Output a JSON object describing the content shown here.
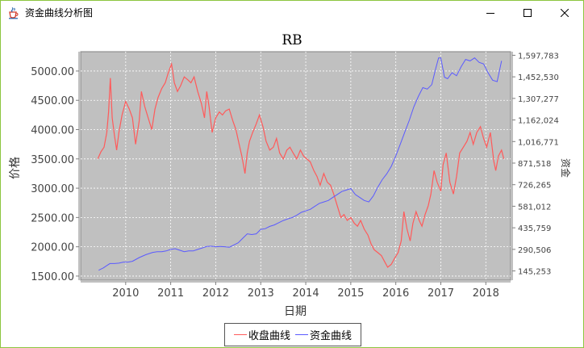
{
  "window": {
    "title": "资金曲线分析图",
    "icon": "java-cup-icon",
    "controls": [
      "minimize-icon",
      "maximize-icon",
      "close-icon"
    ]
  },
  "colors": {
    "plot_bg": "#c0c0c0",
    "price_line": "#ff5a5a",
    "equity_line": "#5a5aff",
    "grid": "#ffffff"
  },
  "chart_data": {
    "type": "line",
    "title": "RB",
    "xlabel": "日期",
    "ylabel": "价格",
    "y2label": "资金",
    "x_ticks": [
      "2010",
      "2011",
      "2012",
      "2013",
      "2014",
      "2015",
      "2016",
      "2017",
      "2018"
    ],
    "y_ticks": [
      "1500.00",
      "2000.00",
      "2500.00",
      "3000.00",
      "3500.00",
      "4000.00",
      "4500.00",
      "5000.00"
    ],
    "y2_ticks": [
      "145,253",
      "290,506",
      "435,759",
      "581,012",
      "726,265",
      "871,518",
      "1,016,771",
      "1,162,024",
      "1,307,277",
      "1,452,530",
      "1,597,783"
    ],
    "xlim": [
      2009.0,
      2018.55
    ],
    "ylim": [
      1430,
      5330
    ],
    "y2lim": [
      83000,
      1622000
    ],
    "grid": true,
    "legend_position": "bottom",
    "series": [
      {
        "name": "收盘曲线",
        "axis": "left",
        "x": [
          2009.38,
          2009.45,
          2009.52,
          2009.58,
          2009.62,
          2009.66,
          2009.7,
          2009.75,
          2009.8,
          2009.85,
          2009.92,
          2010.0,
          2010.08,
          2010.15,
          2010.22,
          2010.3,
          2010.35,
          2010.42,
          2010.5,
          2010.58,
          2010.65,
          2010.72,
          2010.8,
          2010.88,
          2010.95,
          2011.02,
          2011.08,
          2011.15,
          2011.22,
          2011.3,
          2011.38,
          2011.45,
          2011.52,
          2011.6,
          2011.68,
          2011.75,
          2011.8,
          2011.85,
          2011.92,
          2012.0,
          2012.08,
          2012.15,
          2012.22,
          2012.3,
          2012.38,
          2012.45,
          2012.52,
          2012.58,
          2012.65,
          2012.7,
          2012.75,
          2012.82,
          2012.9,
          2012.97,
          2013.05,
          2013.12,
          2013.2,
          2013.28,
          2013.35,
          2013.42,
          2013.5,
          2013.58,
          2013.65,
          2013.72,
          2013.8,
          2013.88,
          2013.95,
          2014.02,
          2014.1,
          2014.18,
          2014.25,
          2014.32,
          2014.4,
          2014.48,
          2014.55,
          2014.62,
          2014.7,
          2014.78,
          2014.85,
          2014.92,
          2015.0,
          2015.08,
          2015.15,
          2015.22,
          2015.3,
          2015.38,
          2015.45,
          2015.52,
          2015.6,
          2015.68,
          2015.75,
          2015.82,
          2015.9,
          2015.97,
          2016.05,
          2016.12,
          2016.18,
          2016.25,
          2016.32,
          2016.38,
          2016.45,
          2016.52,
          2016.58,
          2016.65,
          2016.72,
          2016.78,
          2016.85,
          2016.92,
          2017.0,
          2017.05,
          2017.12,
          2017.2,
          2017.28,
          2017.35,
          2017.42,
          2017.5,
          2017.58,
          2017.65,
          2017.72,
          2017.8,
          2017.88,
          2017.95,
          2018.02,
          2018.1,
          2018.18,
          2018.22,
          2018.28,
          2018.35,
          2018.4
        ],
        "values": [
          3500,
          3620,
          3700,
          3950,
          4300,
          4880,
          4200,
          3900,
          3650,
          3950,
          4250,
          4480,
          4350,
          4200,
          3750,
          4150,
          4650,
          4400,
          4200,
          4000,
          4350,
          4550,
          4700,
          4800,
          4980,
          5120,
          4800,
          4650,
          4750,
          4900,
          4850,
          4800,
          4900,
          4650,
          4450,
          4200,
          4650,
          4400,
          3950,
          4200,
          4300,
          4250,
          4320,
          4350,
          4150,
          4000,
          3750,
          3550,
          3250,
          3600,
          3800,
          3950,
          4100,
          4250,
          4050,
          3800,
          3650,
          3700,
          3850,
          3600,
          3500,
          3650,
          3700,
          3600,
          3500,
          3650,
          3550,
          3500,
          3450,
          3300,
          3200,
          3050,
          3250,
          3100,
          3050,
          2900,
          2700,
          2500,
          2550,
          2450,
          2500,
          2400,
          2350,
          2450,
          2300,
          2200,
          2050,
          1950,
          1900,
          1850,
          1750,
          1650,
          1700,
          1800,
          1900,
          2100,
          2600,
          2300,
          2100,
          2400,
          2600,
          2450,
          2350,
          2550,
          2700,
          2900,
          3300,
          3100,
          2950,
          3400,
          3600,
          3100,
          2900,
          3200,
          3600,
          3700,
          3800,
          3950,
          3750,
          3950,
          4050,
          3850,
          3700,
          3950,
          3450,
          3300,
          3550,
          3650,
          3500
        ]
      },
      {
        "name": "资金曲线",
        "axis": "right",
        "x": [
          2009.4,
          2009.5,
          2009.6,
          2009.65,
          2009.75,
          2009.85,
          2009.95,
          2010.05,
          2010.15,
          2010.3,
          2010.45,
          2010.6,
          2010.7,
          2010.8,
          2010.9,
          2011.0,
          2011.1,
          2011.2,
          2011.3,
          2011.4,
          2011.5,
          2011.6,
          2011.7,
          2011.8,
          2011.9,
          2012.0,
          2012.1,
          2012.2,
          2012.3,
          2012.4,
          2012.5,
          2012.6,
          2012.7,
          2012.8,
          2012.9,
          2013.0,
          2013.1,
          2013.2,
          2013.3,
          2013.4,
          2013.5,
          2013.6,
          2013.7,
          2013.8,
          2013.9,
          2014.0,
          2014.1,
          2014.2,
          2014.3,
          2014.4,
          2014.5,
          2014.6,
          2014.7,
          2014.8,
          2014.9,
          2015.0,
          2015.1,
          2015.2,
          2015.3,
          2015.4,
          2015.5,
          2015.6,
          2015.7,
          2015.8,
          2015.9,
          2016.0,
          2016.1,
          2016.2,
          2016.3,
          2016.4,
          2016.5,
          2016.6,
          2016.7,
          2016.8,
          2016.88,
          2016.95,
          2017.0,
          2017.08,
          2017.15,
          2017.25,
          2017.35,
          2017.45,
          2017.55,
          2017.65,
          2017.75,
          2017.85,
          2017.95,
          2018.05,
          2018.15,
          2018.25,
          2018.35
        ],
        "values": [
          150000,
          165000,
          185000,
          195000,
          195000,
          198000,
          205000,
          205000,
          210000,
          235000,
          255000,
          270000,
          275000,
          275000,
          280000,
          290000,
          295000,
          285000,
          275000,
          280000,
          280000,
          290000,
          300000,
          310000,
          312000,
          308000,
          310000,
          308000,
          305000,
          320000,
          335000,
          365000,
          395000,
          390000,
          395000,
          425000,
          430000,
          445000,
          455000,
          470000,
          485000,
          495000,
          505000,
          520000,
          540000,
          550000,
          560000,
          580000,
          600000,
          610000,
          620000,
          640000,
          660000,
          680000,
          690000,
          700000,
          660000,
          640000,
          620000,
          610000,
          650000,
          710000,
          760000,
          800000,
          850000,
          920000,
          1000000,
          1080000,
          1160000,
          1250000,
          1320000,
          1380000,
          1370000,
          1400000,
          1500000,
          1580000,
          1580000,
          1450000,
          1440000,
          1480000,
          1460000,
          1520000,
          1570000,
          1560000,
          1580000,
          1550000,
          1540000,
          1480000,
          1430000,
          1420000,
          1560000
        ]
      }
    ]
  }
}
